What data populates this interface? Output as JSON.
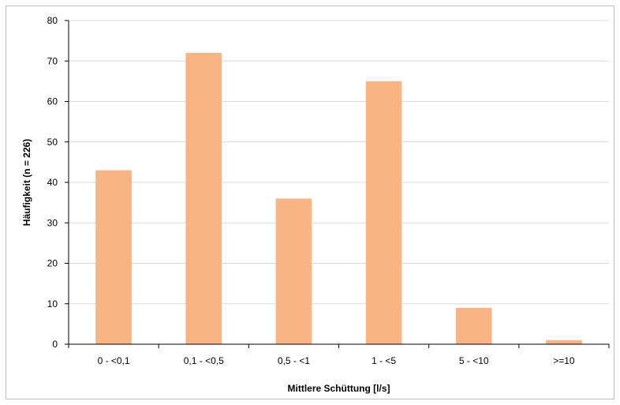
{
  "chart_data": {
    "type": "bar",
    "title": "",
    "xlabel": "Mittlere Schüttung [l/s]",
    "ylabel": "Häufigkeit (n = 226)",
    "categories": [
      "0 - <0,1",
      "0,1 - <0,5",
      "0,5 - <1",
      "1 - <5",
      "5 - <10",
      ">=10"
    ],
    "values": [
      43,
      72,
      36,
      65,
      9,
      1
    ],
    "ylim": [
      0,
      80
    ],
    "yticks": [
      0,
      10,
      20,
      30,
      40,
      50,
      60,
      70,
      80
    ],
    "grid": true,
    "legend": "none",
    "bar_color": "#f9b483",
    "grid_color": "#d9d9d9",
    "axis_color": "#000000"
  }
}
